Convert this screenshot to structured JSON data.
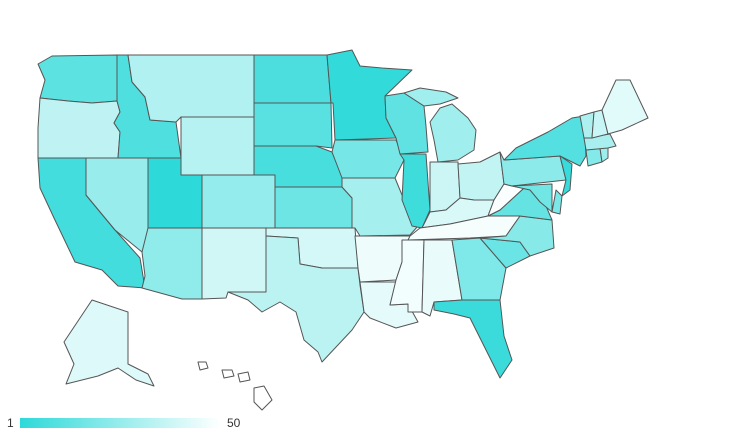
{
  "chart_data": {
    "type": "choropleth",
    "region": "USA states",
    "color_scale": {
      "min": 1,
      "max": 50,
      "min_color": "#2ed9d9",
      "max_color": "#ffffff"
    },
    "legend": {
      "min_label": "1",
      "max_label": "50"
    },
    "values": {
      "WA": 12,
      "OR": 35,
      "CA": 6,
      "NV": 26,
      "ID": 9,
      "MT": 32,
      "WY": 33,
      "UT": 1,
      "AZ": 24,
      "CO": 25,
      "NM": 39,
      "ND": 8,
      "SD": 11,
      "NE": 7,
      "KS": 16,
      "OK": 40,
      "TX": 34,
      "MN": 2,
      "IA": 18,
      "MO": 29,
      "AR": 46,
      "LA": 44,
      "WI": 13,
      "IL": 5,
      "MI": 28,
      "IN": 38,
      "OH": 36,
      "KY": 41,
      "TN": 48,
      "MS": 47,
      "AL": 45,
      "GA": 20,
      "FL": 4,
      "SC": 15,
      "NC": 22,
      "VA": 14,
      "WV": 49,
      "PA": 23,
      "NY": 10,
      "NJ": 3,
      "DE": 19,
      "MD": 17,
      "CT": 21,
      "RI": 27,
      "MA": 30,
      "VT": 31,
      "NH": 37,
      "ME": 43,
      "AK": 42,
      "HI": 50
    }
  }
}
